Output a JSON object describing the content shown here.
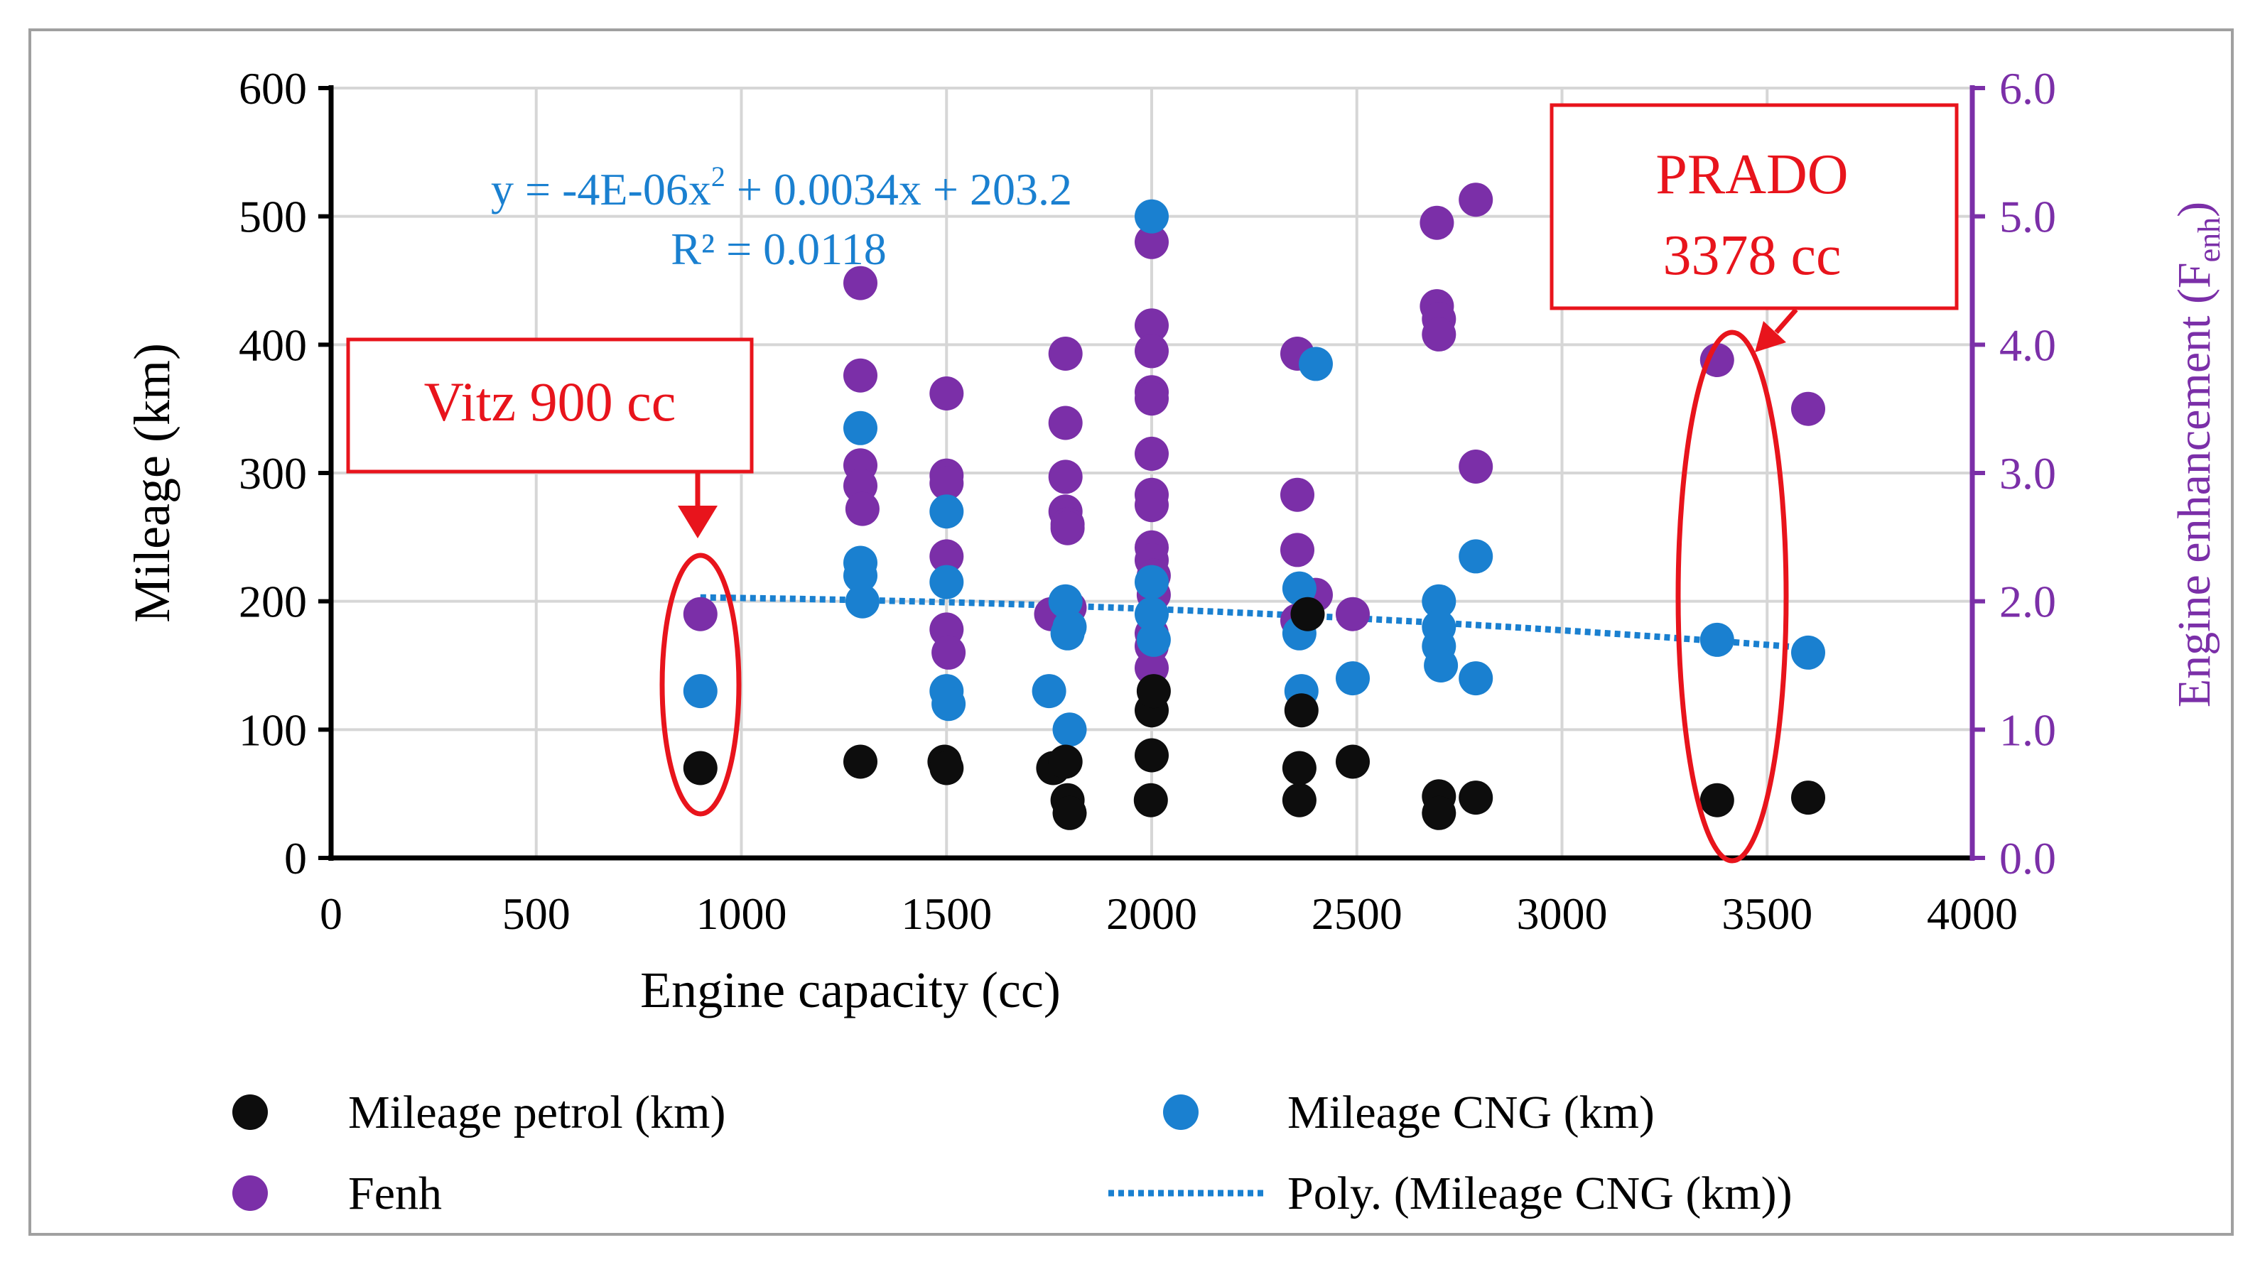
{
  "colors": {
    "petrol": "#0d0d0d",
    "cng": "#1a80d0",
    "fenh": "#7b2fa8",
    "trend": "#1a80d0",
    "annotation": "#e8141c",
    "grid": "#d6d6d6",
    "axis": "#000000"
  },
  "chart_data": {
    "type": "scatter",
    "xlabel": "Engine capacity (cc)",
    "ylabel": "Mileage (km)",
    "y2label_main": "Engine enhancement (F",
    "y2label_sub": "enh",
    "y2label_end": ")",
    "xlim": [
      0,
      4000
    ],
    "ylim": [
      0,
      600
    ],
    "y2lim": [
      0,
      6
    ],
    "x_ticks": [
      "0",
      "500",
      "1000",
      "1500",
      "2000",
      "2500",
      "3000",
      "3500",
      "4000"
    ],
    "y_ticks": [
      "0",
      "100",
      "200",
      "300",
      "400",
      "500",
      "600"
    ],
    "y2_ticks": [
      "0.0",
      "1.0",
      "2.0",
      "3.0",
      "4.0",
      "5.0",
      "6.0"
    ],
    "equation_line1_a": "y = -4E-06x",
    "equation_line1_sup": "2",
    "equation_line1_b": " + 0.0034x + 203.2",
    "equation_line2": "R² = 0.0118",
    "trendline": {
      "a": -4e-06,
      "b": 0.0034,
      "c": 203.2,
      "x_from": 900,
      "x_to": 3600
    },
    "series": [
      {
        "name": "Mileage petrol (km)",
        "axis": "left",
        "x": [
          900,
          1290,
          1495,
          1500,
          1760,
          1790,
          1795,
          1800,
          1998,
          2000,
          2000,
          2005,
          2360,
          2360,
          2365,
          2380,
          2490,
          2700,
          2700,
          2790,
          3378,
          3600
        ],
        "y": [
          70,
          75,
          75,
          70,
          70,
          75,
          45,
          35,
          45,
          80,
          115,
          130,
          45,
          70,
          115,
          190,
          75,
          48,
          35,
          47,
          45,
          47
        ]
      },
      {
        "name": "Mileage CNG (km)",
        "axis": "left",
        "x": [
          900,
          1290,
          1290,
          1290,
          1295,
          1500,
          1500,
          1500,
          1505,
          1750,
          1790,
          1795,
          1800,
          1800,
          2000,
          2000,
          2000,
          2005,
          2360,
          2360,
          2365,
          2400,
          2490,
          2700,
          2700,
          2700,
          2705,
          2790,
          2790,
          3378,
          3600
        ],
        "y": [
          130,
          335,
          230,
          220,
          200,
          270,
          215,
          130,
          120,
          130,
          200,
          175,
          180,
          100,
          500,
          190,
          215,
          170,
          210,
          175,
          130,
          385,
          140,
          200,
          180,
          165,
          150,
          235,
          140,
          170,
          160
        ]
      },
      {
        "name": "Fenh",
        "axis": "right",
        "x": [
          900,
          1290,
          1290,
          1290,
          1290,
          1295,
          1500,
          1500,
          1500,
          1500,
          1500,
          1505,
          1755,
          1790,
          1790,
          1790,
          1790,
          1795,
          1795,
          1800,
          2000,
          2000,
          2000,
          2000,
          2000,
          2000,
          2000,
          2000,
          2000,
          2000,
          2000,
          2000,
          2000,
          2005,
          2005,
          2355,
          2355,
          2355,
          2355,
          2400,
          2490,
          2695,
          2695,
          2700,
          2700,
          2790,
          2790,
          3378,
          3600
        ],
        "y": [
          1.9,
          4.48,
          3.76,
          3.06,
          2.9,
          2.72,
          3.62,
          2.98,
          2.92,
          2.35,
          1.78,
          1.6,
          1.9,
          3.93,
          3.39,
          2.97,
          2.7,
          2.6,
          2.57,
          1.95,
          4.8,
          4.15,
          3.95,
          3.63,
          3.58,
          3.15,
          2.83,
          2.75,
          2.42,
          2.32,
          1.75,
          1.65,
          1.48,
          2.05,
          2.2,
          3.93,
          2.83,
          2.4,
          1.85,
          2.05,
          1.9,
          4.95,
          4.3,
          4.2,
          4.08,
          5.13,
          3.05,
          3.88,
          3.5
        ]
      }
    ],
    "legend": {
      "placement": "bottom",
      "items": [
        {
          "label": "Mileage petrol (km)",
          "kind": "marker",
          "series": "petrol"
        },
        {
          "label": "Mileage CNG (km)",
          "kind": "marker",
          "series": "cng"
        },
        {
          "label": "Fenh",
          "kind": "marker",
          "series": "fenh"
        },
        {
          "label": "Poly. (Mileage CNG (km))",
          "kind": "line",
          "series": "trend"
        }
      ]
    },
    "annotations": {
      "vitz_label": "Vitz 900 cc",
      "prado_label_line1": "PRADO",
      "prado_label_line2": "3378 cc"
    }
  }
}
